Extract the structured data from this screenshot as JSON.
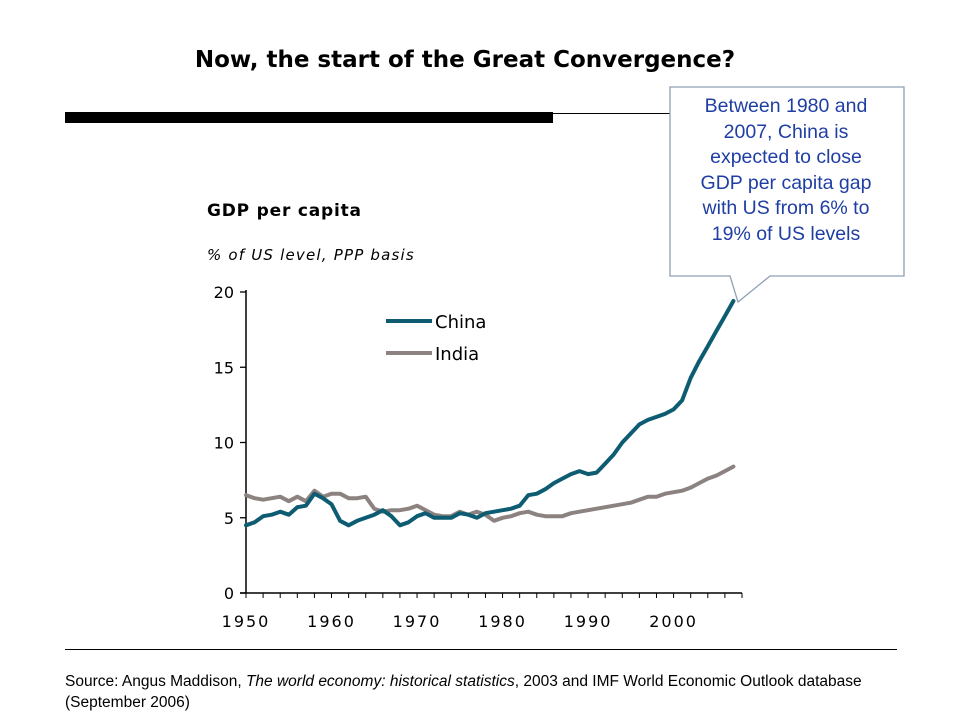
{
  "title": "Now, the start of the Great Convergence?",
  "callout": {
    "text": "Between 1980 and 2007, China is expected to close GDP per capita gap with US from 6% to 19% of US levels",
    "lines": [
      "Between 1980 and",
      "2007, China is",
      "expected to close",
      "GDP per capita gap",
      "with US from 6% to",
      "19% of US levels"
    ],
    "border_color": "#8fa0b4",
    "text_color": "#1f3ea4"
  },
  "source": {
    "prefix": "Source: Angus Maddison, ",
    "italic": "The world economy: historical statistics",
    "suffix": ", 2003 and IMF World Economic Outlook database (September 2006)"
  },
  "chart_data": {
    "type": "line",
    "title": "GDP per capita",
    "subtitle": "% of US level, PPP basis",
    "x": [
      1950,
      1951,
      1952,
      1953,
      1954,
      1955,
      1956,
      1957,
      1958,
      1959,
      1960,
      1961,
      1962,
      1963,
      1964,
      1965,
      1966,
      1967,
      1968,
      1969,
      1970,
      1971,
      1972,
      1973,
      1974,
      1975,
      1976,
      1977,
      1978,
      1979,
      1980,
      1981,
      1982,
      1983,
      1984,
      1985,
      1986,
      1987,
      1988,
      1989,
      1990,
      1991,
      1992,
      1993,
      1994,
      1995,
      1996,
      1997,
      1998,
      1999,
      2000,
      2001,
      2002,
      2003,
      2004,
      2005,
      2006,
      2007
    ],
    "series": [
      {
        "name": "China",
        "color": "#0d5c72",
        "values": [
          4.5,
          4.7,
          5.1,
          5.2,
          5.4,
          5.2,
          5.7,
          5.8,
          6.6,
          6.3,
          5.9,
          4.8,
          4.5,
          4.8,
          5.0,
          5.2,
          5.5,
          5.1,
          4.5,
          4.7,
          5.1,
          5.3,
          5.0,
          5.0,
          5.0,
          5.3,
          5.2,
          5.0,
          5.3,
          5.4,
          5.5,
          5.6,
          5.8,
          6.5,
          6.6,
          6.9,
          7.3,
          7.6,
          7.9,
          8.1,
          7.9,
          8.0,
          8.6,
          9.2,
          10.0,
          10.6,
          11.2,
          11.5,
          11.7,
          11.9,
          12.2,
          12.8,
          14.3,
          15.4,
          16.4,
          17.4,
          18.4,
          19.4
        ]
      },
      {
        "name": "India",
        "color": "#8c8380",
        "values": [
          6.5,
          6.3,
          6.2,
          6.3,
          6.4,
          6.1,
          6.4,
          6.1,
          6.8,
          6.4,
          6.6,
          6.6,
          6.3,
          6.3,
          6.4,
          5.6,
          5.4,
          5.5,
          5.5,
          5.6,
          5.8,
          5.5,
          5.2,
          5.1,
          5.1,
          5.4,
          5.2,
          5.4,
          5.2,
          4.8,
          5.0,
          5.1,
          5.3,
          5.4,
          5.2,
          5.1,
          5.1,
          5.1,
          5.3,
          5.4,
          5.5,
          5.6,
          5.7,
          5.8,
          5.9,
          6.0,
          6.2,
          6.4,
          6.4,
          6.6,
          6.7,
          6.8,
          7.0,
          7.3,
          7.6,
          7.8,
          8.1,
          8.4
        ]
      }
    ],
    "xlim": [
      1950,
      2008
    ],
    "ylim": [
      0,
      20
    ],
    "x_ticks": [
      1950,
      1960,
      1970,
      1980,
      1990,
      2000
    ],
    "y_ticks": [
      0,
      5,
      10,
      15,
      20
    ],
    "grid": false,
    "legend_position": "top-left"
  }
}
